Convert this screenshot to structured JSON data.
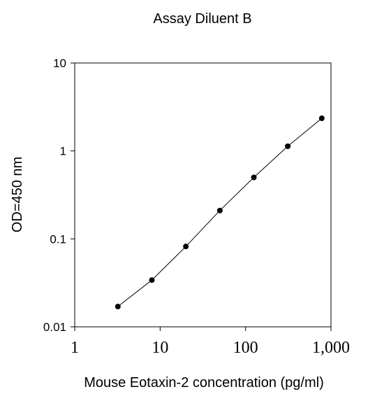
{
  "chart_data": {
    "type": "line",
    "title": "Assay Diluent B",
    "xlabel": "Mouse Eotaxin-2 concentration (pg/ml)",
    "ylabel": "OD=450 nm",
    "x_scale": "log",
    "y_scale": "log",
    "xlim": [
      1,
      1000
    ],
    "ylim": [
      0.01,
      10
    ],
    "x_ticks": [
      {
        "value": 1,
        "label": "1"
      },
      {
        "value": 10,
        "label": "10"
      },
      {
        "value": 100,
        "label": "100"
      },
      {
        "value": 1000,
        "label": "1,000"
      }
    ],
    "y_ticks": [
      {
        "value": 0.01,
        "label": "0.01"
      },
      {
        "value": 0.1,
        "label": "0.1"
      },
      {
        "value": 1,
        "label": "1"
      },
      {
        "value": 10,
        "label": "10"
      }
    ],
    "grid": false,
    "legend": "none",
    "series": [
      {
        "marker": "circle",
        "color": "#000000",
        "points": [
          {
            "x": 3.2,
            "y": 0.017
          },
          {
            "x": 8.0,
            "y": 0.034
          },
          {
            "x": 20,
            "y": 0.082
          },
          {
            "x": 50,
            "y": 0.21
          },
          {
            "x": 125,
            "y": 0.5
          },
          {
            "x": 312,
            "y": 1.13
          },
          {
            "x": 780,
            "y": 2.35
          }
        ]
      }
    ]
  }
}
